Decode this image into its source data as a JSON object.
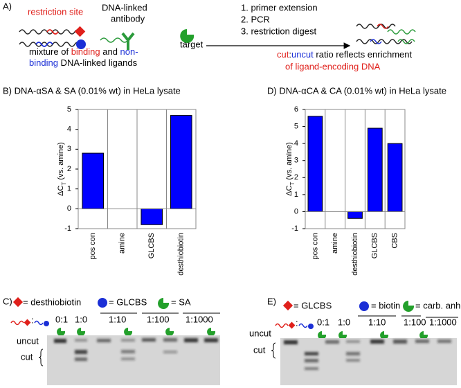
{
  "panel_a": {
    "label": "A)",
    "restriction_site": "restriction site",
    "antibody": [
      "DNA-linked",
      "antibody"
    ],
    "target": "target",
    "mixture_line1": [
      "mixture of ",
      "binding",
      " and ",
      "non-"
    ],
    "mixture_line2": [
      "binding",
      " DNA-linked ligands"
    ],
    "steps": [
      "1. primer extension",
      "2. PCR",
      "3. restriction digest"
    ],
    "result_line1": [
      "cut",
      ":",
      "uncut",
      " ratio reflects enrichment"
    ],
    "result_line2": "of ligand-encoding DNA"
  },
  "chart_data": [
    {
      "type": "bar",
      "title": "B) DNA-αSA & SA (0.01% wt) in HeLa lysate",
      "y_label": [
        "ΔC",
        "T",
        " (vs. amine)"
      ],
      "categories": [
        "pos con",
        "amine",
        "GLCBS",
        "desthiobiotin"
      ],
      "values": [
        2.8,
        0,
        -0.8,
        4.7
      ],
      "color": "#0000ff",
      "ylim": [
        -1,
        5
      ],
      "yticks": [
        -1,
        0,
        1,
        2,
        3,
        4,
        5
      ]
    },
    {
      "type": "bar",
      "title": "D) DNA-αCA & CA (0.01% wt) in HeLa lysate",
      "y_label": [
        "ΔC",
        "T",
        " (vs. amine)"
      ],
      "categories": [
        "pos con",
        "amine",
        "desthiobiotin",
        "GLCBS",
        "CBS"
      ],
      "values": [
        5.6,
        0,
        -0.4,
        4.9,
        4.0
      ],
      "color": "#0000ff",
      "ylim": [
        -1,
        6
      ],
      "yticks": [
        -1,
        0,
        1,
        2,
        3,
        4,
        5,
        6
      ]
    }
  ],
  "gel_c": {
    "label": "C)",
    "legend": [
      "= desthiobiotin",
      "= GLCBS",
      "= SA"
    ],
    "ratios": [
      "0:1",
      "1:0",
      "1:10",
      "1:100",
      "1:1000"
    ],
    "uncut": "uncut",
    "cut": "cut"
  },
  "gel_e": {
    "label": "E)",
    "legend": [
      "= GLCBS",
      "= biotin",
      "= carb. anhd."
    ],
    "ratios": [
      "0:1",
      "1:0",
      "1:10",
      "1:100",
      "1:1000"
    ],
    "uncut": "uncut",
    "cut": "cut"
  }
}
